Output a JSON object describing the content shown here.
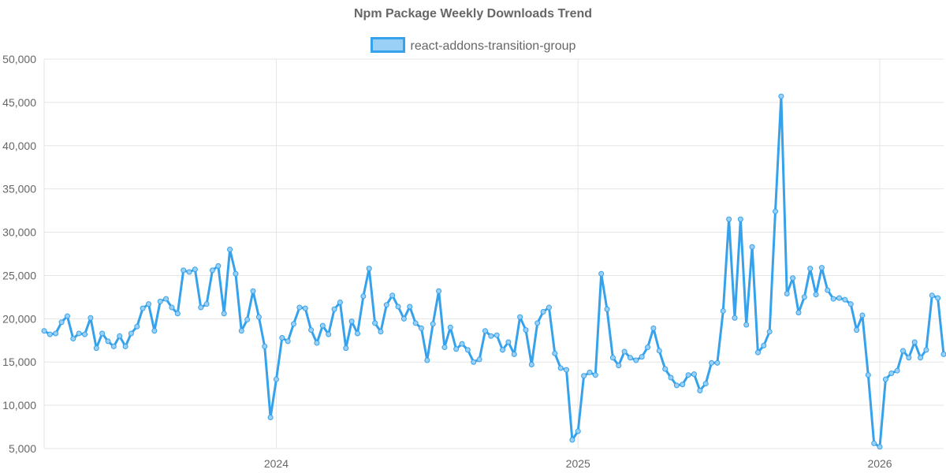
{
  "chart_data": {
    "type": "line",
    "title": "Npm Package Weekly Downloads Trend",
    "xlabel": "",
    "ylabel": "",
    "ylim": [
      5000,
      50000
    ],
    "yticks": [
      "5,000",
      "10,000",
      "15,000",
      "20,000",
      "25,000",
      "30,000",
      "35,000",
      "40,000",
      "45,000",
      "50,000"
    ],
    "ytick_values": [
      5000,
      10000,
      15000,
      20000,
      25000,
      30000,
      35000,
      40000,
      45000,
      50000
    ],
    "xticks": [
      "2024",
      "2025",
      "2026"
    ],
    "xtick_positions": [
      40,
      92,
      144
    ],
    "x_range": [
      0,
      155
    ],
    "grid": true,
    "legend_position": "top",
    "series": [
      {
        "name": "react-addons-transition-group",
        "color": "#36a2eb",
        "fill": "#9ad0f5",
        "values": [
          18600,
          18200,
          18300,
          19600,
          20300,
          17700,
          18300,
          18200,
          20100,
          16600,
          18300,
          17400,
          16800,
          18000,
          16800,
          18300,
          19100,
          21200,
          21700,
          18600,
          22000,
          22300,
          21300,
          20600,
          25600,
          25400,
          25700,
          21300,
          21700,
          25600,
          26100,
          20600,
          28000,
          25200,
          18600,
          19900,
          23200,
          20200,
          16800,
          8600,
          13000,
          17800,
          17400,
          19400,
          21300,
          21200,
          18700,
          17200,
          19200,
          18200,
          21100,
          21900,
          16600,
          19700,
          18300,
          22600,
          25800,
          19500,
          18500,
          21600,
          22700,
          21400,
          20000,
          21400,
          19500,
          18900,
          15200,
          19400,
          23200,
          16700,
          19000,
          16500,
          17100,
          16400,
          15000,
          15300,
          18600,
          18000,
          18100,
          16400,
          17300,
          15900,
          20200,
          18700,
          14700,
          19500,
          20800,
          21300,
          16000,
          14300,
          14100,
          6000,
          7000,
          13400,
          13800,
          13500,
          25200,
          21100,
          15500,
          14600,
          16200,
          15500,
          15200,
          15600,
          16700,
          18900,
          16300,
          14200,
          13200,
          12300,
          12400,
          13500,
          13600,
          11700,
          12500,
          14900,
          14900,
          20900,
          31500,
          20100,
          31500,
          19300,
          28300,
          16100,
          16900,
          18500,
          32400,
          45700,
          22900,
          24700,
          20700,
          22500,
          25800,
          22800,
          25900,
          23300,
          22300,
          22400,
          22200,
          21700,
          18700,
          20400,
          13500,
          5600,
          5200,
          13000,
          13700,
          14000,
          16300,
          15500,
          17300,
          15500,
          16400,
          22700,
          22400,
          15900
        ]
      }
    ]
  }
}
